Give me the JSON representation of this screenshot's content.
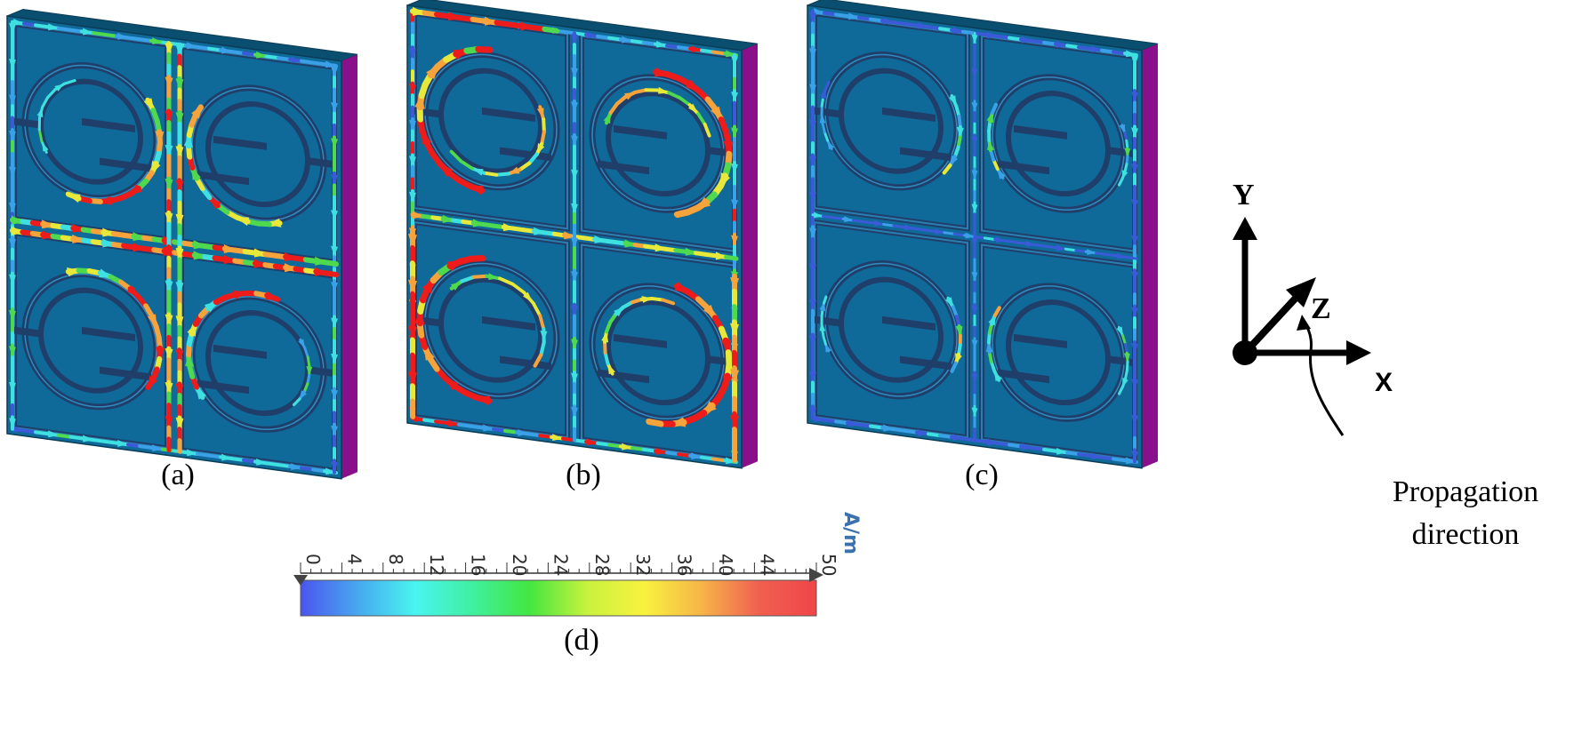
{
  "figure": {
    "panels": [
      {
        "id": "a",
        "label": "(a)",
        "intensity": "high-center"
      },
      {
        "id": "b",
        "label": "(b)",
        "intensity": "high-rings"
      },
      {
        "id": "c",
        "label": "(c)",
        "intensity": "low"
      }
    ],
    "colorbar": {
      "label": "(d)",
      "unit": "A/m",
      "ticks": [
        "0",
        "4",
        "8",
        "12",
        "16",
        "20",
        "24",
        "28",
        "32",
        "36",
        "40",
        "44",
        "50"
      ],
      "tick_values": [
        0,
        4,
        8,
        12,
        16,
        20,
        24,
        28,
        32,
        36,
        40,
        44,
        50
      ],
      "range": [
        0,
        50
      ],
      "colors": [
        "#4b55ee",
        "#47a8f0",
        "#4af4f0",
        "#3ff0a0",
        "#44e640",
        "#c8f23e",
        "#f8f23e",
        "#f7b448",
        "#f06050",
        "#f04548"
      ]
    },
    "axes": {
      "y_label": "Y",
      "z_label": "Z",
      "x_label": "X",
      "note_line1": "Propagation",
      "note_line2": "direction"
    },
    "colors": {
      "plate_face": "#0f6a9a",
      "plate_top": "#0b4f70",
      "plate_side": "#8a0f8a",
      "slot": "#0d5c85",
      "slot_edge": "#1f3f6a"
    }
  }
}
